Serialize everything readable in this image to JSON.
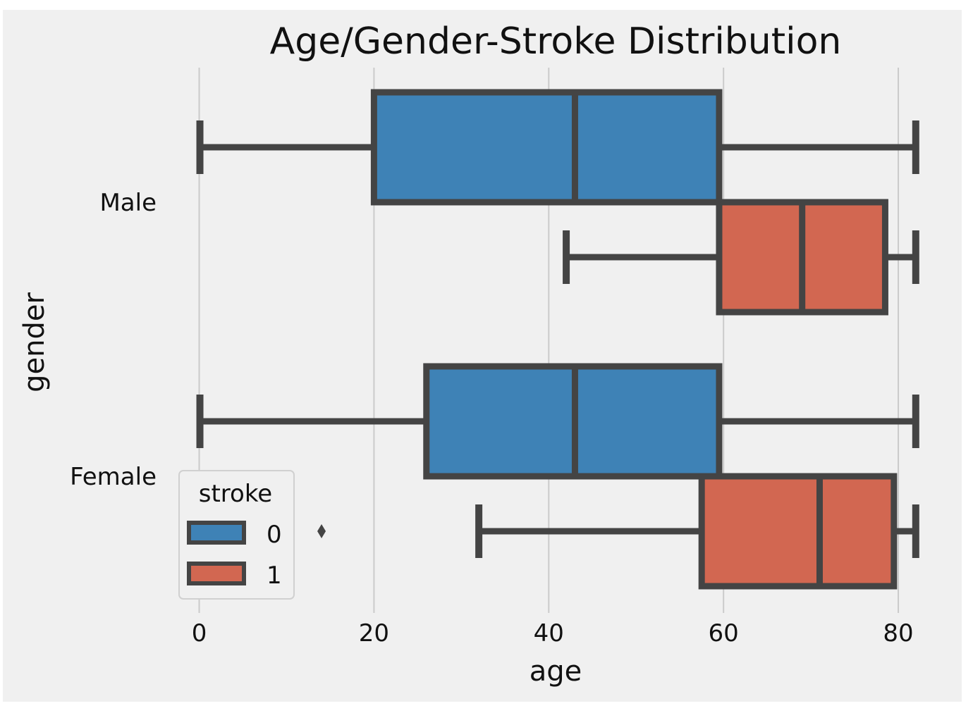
{
  "chart_data": {
    "type": "boxplot",
    "orientation": "horizontal",
    "title": "Age/Gender-Stroke Distribution",
    "xlabel": "age",
    "ylabel": "gender",
    "xlim": [
      -11.5,
      85
    ],
    "xticks": [
      0,
      20,
      40,
      60,
      80
    ],
    "grid": "vertical",
    "categories": [
      "Male",
      "Female"
    ],
    "legend": {
      "title": "stroke",
      "position": "lower-left"
    },
    "series": [
      {
        "name": "0",
        "color": "#3e82b6",
        "boxes": [
          {
            "category": "Male",
            "whisker_low": 0.08,
            "q1": 20,
            "median": 43,
            "q3": 59.5,
            "whisker_high": 82
          },
          {
            "category": "Female",
            "whisker_low": 0.08,
            "q1": 26,
            "median": 43,
            "q3": 59.5,
            "whisker_high": 82
          }
        ]
      },
      {
        "name": "1",
        "color": "#d26751",
        "boxes": [
          {
            "category": "Male",
            "whisker_low": 42,
            "q1": 59.5,
            "median": 69,
            "q3": 78.5,
            "whisker_high": 82
          },
          {
            "category": "Female",
            "whisker_low": 32,
            "q1": 57.5,
            "median": 71,
            "q3": 79.5,
            "whisker_high": 82,
            "outliers": [
              14
            ]
          }
        ]
      }
    ]
  }
}
